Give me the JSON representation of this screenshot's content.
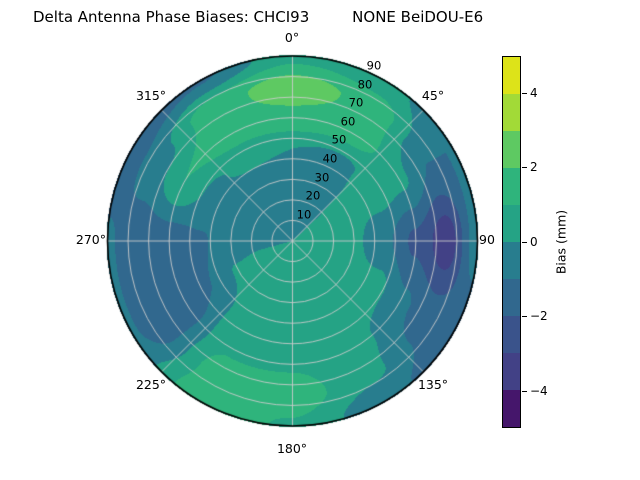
{
  "header": {
    "title": "Delta Antenna Phase Biases: CHCI93         NONE BeiDOU-E6"
  },
  "chart_data": {
    "type": "heatmap",
    "subtype": "polar_filled_contour",
    "title": "Delta Antenna Phase Biases: CHCI93         NONE BeiDOU-E6",
    "colormap": "viridis",
    "value_unit": "mm",
    "value_range": [
      -5,
      5
    ],
    "contour_levels": [
      -5,
      -4,
      -3,
      -2,
      -1,
      0,
      1,
      2,
      3,
      4,
      5
    ],
    "band_colors": [
      "#45166b",
      "#424186",
      "#3a538b",
      "#31688e",
      "#287d8e",
      "#25a385",
      "#2fb47c",
      "#5ec962",
      "#a2da37",
      "#dde319"
    ],
    "grid_line_color": "#cccccc",
    "outline_color": "#000000",
    "angular_ticks": [
      "0°",
      "45°",
      "90",
      "135°",
      "180°",
      "225°",
      "270°",
      "315°"
    ],
    "angular_tick_values": [
      0,
      45,
      90,
      135,
      180,
      225,
      270,
      315
    ],
    "radial_axis": {
      "max": 90,
      "tick_values": [
        10,
        20,
        30,
        40,
        50,
        60,
        70,
        80,
        90
      ],
      "tick_labels": [
        "10",
        "20",
        "30",
        "40",
        "50",
        "60",
        "70",
        "80",
        "90"
      ],
      "label_azimuth_deg": 25
    },
    "colorbar": {
      "label": "Bias (mm)",
      "tick_labels": [
        "4",
        "2",
        "0",
        "−2",
        "−4"
      ],
      "tick_values": [
        4,
        2,
        0,
        -2,
        -4
      ],
      "range": [
        -5,
        5
      ]
    },
    "grid": {
      "azimuth_deg": [
        0,
        30,
        60,
        90,
        120,
        150,
        180,
        210,
        240,
        270,
        300,
        330
      ],
      "radius": [
        0,
        15,
        30,
        45,
        60,
        75,
        90
      ],
      "bias_mm": [
        [
          0.0,
          -0.4,
          -0.6,
          0.0,
          1.7,
          2.6,
          0.7
        ],
        [
          0.0,
          -0.3,
          -0.3,
          -0.2,
          1.5,
          1.7,
          0.3
        ],
        [
          0.0,
          0.2,
          0.3,
          0.4,
          0.2,
          -1.0,
          -1.0
        ],
        [
          0.0,
          0.3,
          0.2,
          -0.8,
          -2.2,
          -3.6,
          -0.5
        ],
        [
          0.0,
          0.4,
          0.3,
          0.4,
          -0.8,
          -1.5,
          -1.8
        ],
        [
          0.0,
          0.5,
          0.6,
          0.5,
          0.3,
          0.2,
          -0.7
        ],
        [
          0.0,
          0.6,
          0.7,
          0.6,
          0.9,
          1.5,
          0.9
        ],
        [
          0.0,
          0.5,
          0.6,
          0.6,
          0.9,
          1.4,
          1.6
        ],
        [
          0.0,
          0.3,
          0.1,
          -1.0,
          -1.7,
          -1.8,
          -0.9
        ],
        [
          0.0,
          -0.3,
          -0.5,
          -1.1,
          -1.5,
          -1.6,
          -0.9
        ],
        [
          0.0,
          -0.4,
          -0.6,
          -0.2,
          1.0,
          -0.4,
          -1.6
        ],
        [
          0.0,
          -0.5,
          -0.6,
          0.2,
          1.5,
          1.6,
          -1.1
        ]
      ]
    }
  }
}
